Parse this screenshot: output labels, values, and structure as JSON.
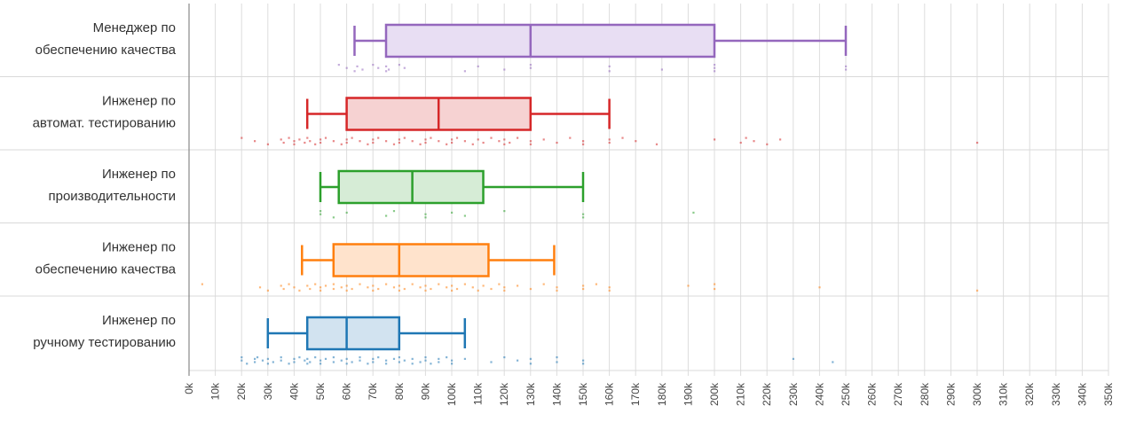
{
  "chart_data": {
    "type": "box",
    "orientation": "horizontal",
    "x_unit_suffix": "k",
    "xlim": [
      0,
      350
    ],
    "x_ticks": [
      "0k",
      "10k",
      "20k",
      "30k",
      "40k",
      "50k",
      "60k",
      "70k",
      "80k",
      "90k",
      "100k",
      "110k",
      "120k",
      "130k",
      "140k",
      "150k",
      "160k",
      "170k",
      "180k",
      "190k",
      "200k",
      "210k",
      "220k",
      "230k",
      "240k",
      "250k",
      "260k",
      "270k",
      "280k",
      "290k",
      "300k",
      "310k",
      "320k",
      "330k",
      "340k",
      "350k"
    ],
    "grid": true,
    "categories": [
      {
        "lines": [
          "Менеджер по",
          "обеспечению качества"
        ],
        "color": "#9467bd",
        "fill": "#e8def3",
        "whisker_low": 63,
        "q1": 75,
        "median": 130,
        "q3": 200,
        "whisker_high": 250,
        "points": [
          57,
          60,
          63,
          64,
          66,
          70,
          72,
          75,
          75,
          76,
          80,
          82,
          105,
          110,
          120,
          130,
          130,
          160,
          160,
          180,
          200,
          200,
          200,
          250,
          250
        ]
      },
      {
        "lines": [
          "Инженер по",
          "автомат. тестированию"
        ],
        "color": "#d62728",
        "fill": "#f6d2d2",
        "whisker_low": 45,
        "q1": 60,
        "median": 95,
        "q3": 130,
        "whisker_high": 160,
        "points": [
          20,
          25,
          30,
          35,
          36,
          38,
          40,
          40,
          42,
          44,
          45,
          46,
          48,
          50,
          50,
          52,
          55,
          58,
          60,
          60,
          62,
          65,
          68,
          70,
          70,
          72,
          75,
          78,
          80,
          80,
          82,
          85,
          88,
          90,
          90,
          92,
          95,
          98,
          100,
          100,
          102,
          105,
          108,
          110,
          112,
          115,
          118,
          120,
          120,
          122,
          125,
          130,
          130,
          135,
          140,
          145,
          150,
          150,
          160,
          160,
          165,
          170,
          178,
          200,
          210,
          212,
          215,
          220,
          225,
          300
        ]
      },
      {
        "lines": [
          "Инженер по",
          "производительности"
        ],
        "color": "#2ca02c",
        "fill": "#d6ecd6",
        "whisker_low": 50,
        "q1": 57,
        "median": 85,
        "q3": 112,
        "whisker_high": 150,
        "points": [
          50,
          50,
          55,
          60,
          75,
          78,
          90,
          90,
          100,
          105,
          120,
          150,
          150,
          192
        ]
      },
      {
        "lines": [
          "Инженер по",
          "обеспечению качества"
        ],
        "color": "#ff7f0e",
        "fill": "#ffe3cc",
        "whisker_low": 43,
        "q1": 55,
        "median": 80,
        "q3": 114,
        "whisker_high": 139,
        "points": [
          5,
          27,
          30,
          35,
          36,
          38,
          40,
          42,
          45,
          46,
          48,
          50,
          50,
          52,
          55,
          55,
          58,
          60,
          60,
          62,
          65,
          68,
          70,
          70,
          72,
          75,
          78,
          80,
          80,
          82,
          85,
          88,
          90,
          90,
          92,
          95,
          98,
          100,
          100,
          102,
          105,
          108,
          110,
          112,
          115,
          118,
          120,
          120,
          125,
          130,
          135,
          140,
          140,
          150,
          150,
          155,
          160,
          160,
          190,
          200,
          200,
          240,
          300
        ]
      },
      {
        "lines": [
          "Инженер по",
          "ручному тестированию"
        ],
        "color": "#1f77b4",
        "fill": "#d2e3f0",
        "whisker_low": 30,
        "q1": 45,
        "median": 60,
        "q3": 80,
        "whisker_high": 105,
        "points": [
          20,
          20,
          22,
          25,
          25,
          26,
          28,
          30,
          30,
          32,
          35,
          35,
          38,
          40,
          40,
          42,
          44,
          45,
          45,
          46,
          48,
          50,
          50,
          52,
          55,
          55,
          58,
          60,
          60,
          62,
          65,
          65,
          68,
          70,
          70,
          72,
          75,
          75,
          78,
          80,
          80,
          82,
          85,
          85,
          88,
          90,
          90,
          92,
          95,
          95,
          98,
          100,
          100,
          105,
          115,
          120,
          125,
          130,
          130,
          140,
          140,
          150,
          150,
          230,
          245
        ]
      }
    ]
  }
}
